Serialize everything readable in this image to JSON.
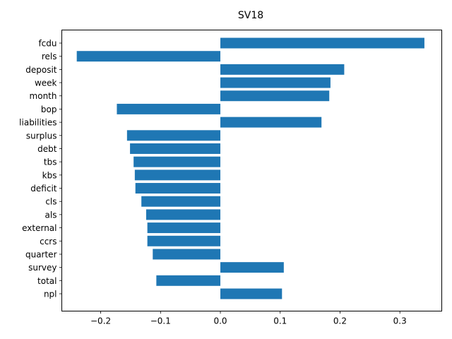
{
  "chart_data": {
    "type": "bar",
    "orientation": "horizontal",
    "title": "SV18",
    "xlabel": "",
    "ylabel": "",
    "xlim": [
      -0.265,
      0.37
    ],
    "xticks": [
      -0.2,
      -0.1,
      0.0,
      0.1,
      0.2,
      0.3
    ],
    "xtick_labels": [
      "−0.2",
      "−0.1",
      "0.0",
      "0.1",
      "0.2",
      "0.3"
    ],
    "grid": false,
    "bar_color": "#1f77b4",
    "categories": [
      "fcdu",
      "rels",
      "deposit",
      "week",
      "month",
      "bop",
      "liabilities",
      "surplus",
      "debt",
      "tbs",
      "kbs",
      "deficit",
      "cls",
      "als",
      "external",
      "ccrs",
      "quarter",
      "survey",
      "total",
      "npl"
    ],
    "values": [
      0.341,
      -0.24,
      0.207,
      0.184,
      0.182,
      -0.173,
      0.169,
      -0.156,
      -0.151,
      -0.145,
      -0.143,
      -0.142,
      -0.132,
      -0.124,
      -0.122,
      -0.122,
      -0.113,
      0.106,
      -0.107,
      0.103
    ]
  }
}
